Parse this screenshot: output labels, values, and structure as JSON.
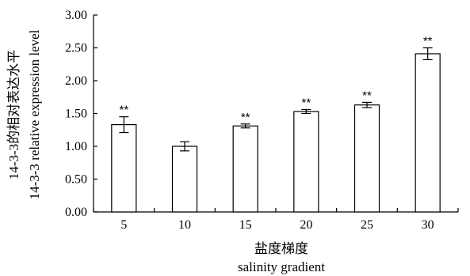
{
  "chart_data": {
    "type": "bar",
    "categories": [
      "5",
      "10",
      "15",
      "20",
      "25",
      "30"
    ],
    "values": [
      1.33,
      1.0,
      1.31,
      1.53,
      1.63,
      2.41
    ],
    "errors": [
      0.12,
      0.07,
      0.03,
      0.03,
      0.04,
      0.09
    ],
    "significance": [
      "**",
      "",
      "**",
      "**",
      "**",
      "**"
    ],
    "ylim": [
      0.0,
      3.0
    ],
    "yticks": [
      "0.00",
      "0.50",
      "1.00",
      "1.50",
      "2.00",
      "2.50",
      "3.00"
    ],
    "ylabel_cn": "14-3-3的相对表达水平",
    "ylabel_en": "14-3-3 relative expression level",
    "xlabel_cn": "盐度梯度",
    "xlabel_en": "salinity gradient",
    "bar_fill": "#ffffff",
    "stroke_color": "#000000",
    "grid": false
  }
}
